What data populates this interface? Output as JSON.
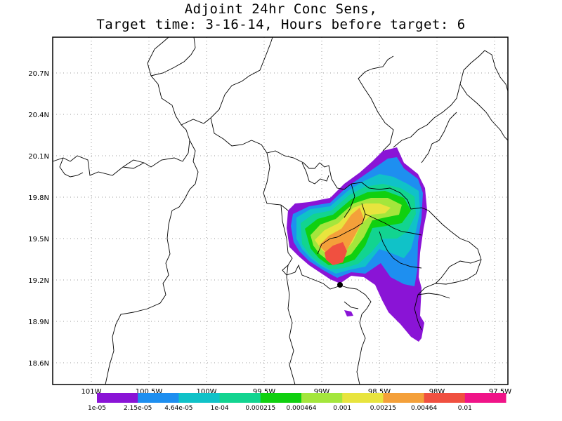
{
  "title_line1": "Adjoint 24hr Conc Sens,",
  "title_line2": "Target time: 3-16-14, Hours before target: 6",
  "lat_ticks": [
    "20.7N",
    "20.4N",
    "20.1N",
    "19.8N",
    "19.5N",
    "19.2N",
    "18.9N",
    "18.6N"
  ],
  "lon_ticks": [
    "101W",
    "100.5W",
    "100W",
    "99.5W",
    "99W",
    "98.5W",
    "98W",
    "97.5W"
  ],
  "colorbar": {
    "colors": [
      "#8a14d6",
      "#1e8ff0",
      "#10c2c8",
      "#12d490",
      "#10d010",
      "#a4e63c",
      "#e8e43e",
      "#f4a03a",
      "#f05040",
      "#f01488"
    ],
    "labels": [
      "1e-05",
      "2.15e-05",
      "4.64e-05",
      "1e-04",
      "0.000215",
      "0.000464",
      "0.001",
      "0.00215",
      "0.00464",
      "0.01"
    ]
  },
  "target_marker": "black-dot"
}
